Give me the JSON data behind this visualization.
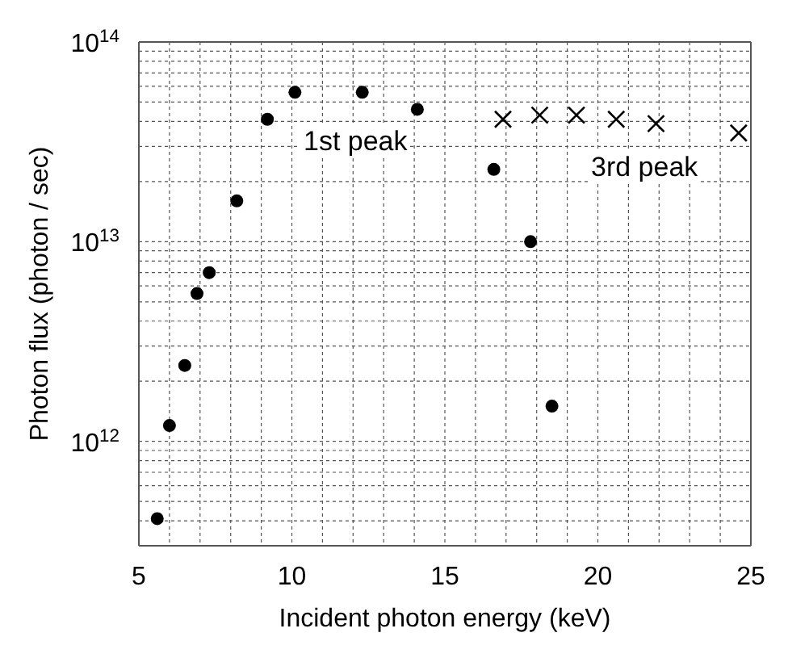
{
  "chart_data": {
    "type": "scatter",
    "xlabel": "Incident photon energy (keV)",
    "ylabel": "Photon flux (photon / sec)",
    "xlim": [
      5,
      25
    ],
    "xticks": [
      5,
      {
        "value": 6,
        "label": null
      },
      {
        "value": 7,
        "label": null
      },
      {
        "value": 8,
        "label": null
      },
      {
        "value": 9,
        "label": null
      },
      10,
      {
        "value": 11,
        "label": null
      },
      {
        "value": 12,
        "label": null
      },
      {
        "value": 13,
        "label": null
      },
      {
        "value": 14,
        "label": null
      },
      15,
      {
        "value": 16,
        "label": null
      },
      {
        "value": 17,
        "label": null
      },
      {
        "value": 18,
        "label": null
      },
      {
        "value": 19,
        "label": null
      },
      20,
      {
        "value": 21,
        "label": null
      },
      {
        "value": 22,
        "label": null
      },
      {
        "value": 23,
        "label": null
      },
      {
        "value": 24,
        "label": null
      },
      25
    ],
    "ylim": [
      300000000000.0,
      100000000000000.0
    ],
    "yticks": [
      {
        "value": 300000000000.0,
        "label": null
      },
      {
        "value": 400000000000.0,
        "label": null
      },
      {
        "value": 500000000000.0,
        "label": null
      },
      {
        "value": 600000000000.0,
        "label": null
      },
      {
        "value": 700000000000.0,
        "label": null
      },
      {
        "value": 800000000000.0,
        "label": null
      },
      {
        "value": 900000000000.0,
        "label": null
      },
      {
        "value": 1000000000000.0,
        "label": "10$^{12}$"
      },
      {
        "value": 2000000000000.0,
        "label": null
      },
      {
        "value": 3000000000000.0,
        "label": null
      },
      {
        "value": 4000000000000.0,
        "label": null
      },
      {
        "value": 5000000000000.0,
        "label": null
      },
      {
        "value": 6000000000000.0,
        "label": null
      },
      {
        "value": 7000000000000.0,
        "label": null
      },
      {
        "value": 8000000000000.0,
        "label": null
      },
      {
        "value": 9000000000000.0,
        "label": null
      },
      {
        "value": 10000000000000.0,
        "label": "10$^{13}$"
      },
      {
        "value": 20000000000000.0,
        "label": null
      },
      {
        "value": 30000000000000.0,
        "label": null
      },
      {
        "value": 40000000000000.0,
        "label": null
      },
      {
        "value": 50000000000000.0,
        "label": null
      },
      {
        "value": 60000000000000.0,
        "label": null
      },
      {
        "value": 70000000000000.0,
        "label": null
      },
      {
        "value": 80000000000000.0,
        "label": null
      },
      {
        "value": 90000000000000.0,
        "label": null
      },
      {
        "value": 100000000000000.0,
        "label": "10$^{14}$"
      }
    ],
    "log": true,
    "grid": true,
    "legend": false,
    "series": [
      {
        "color": "#000000",
        "marker": "circle",
        "x": [
          5.6,
          6.0,
          6.5,
          6.9,
          7.3,
          8.2,
          9.2,
          10.1,
          12.3,
          14.1,
          16.6,
          17.8,
          18.5
        ],
        "values": [
          410000000000.0,
          1200000000000.0,
          2400000000000.0,
          5500000000000.0,
          7000000000000.0,
          16000000000000.0,
          41000000000000.0,
          56000000000000.0,
          56000000000000.0,
          46000000000000.0,
          23000000000000.0,
          10000000000000.0,
          1500000000000.0
        ]
      },
      {
        "color": "#000000",
        "marker": "cross",
        "x": [
          16.9,
          18.1,
          19.3,
          20.6,
          21.9,
          24.6
        ],
        "values": [
          41000000000000.0,
          43000000000000.0,
          43000000000000.0,
          41000000000000.0,
          39000000000000.0,
          35000000000000.0
        ]
      }
    ],
    "annotations": [
      "1st peak",
      "3rd peak"
    ]
  }
}
